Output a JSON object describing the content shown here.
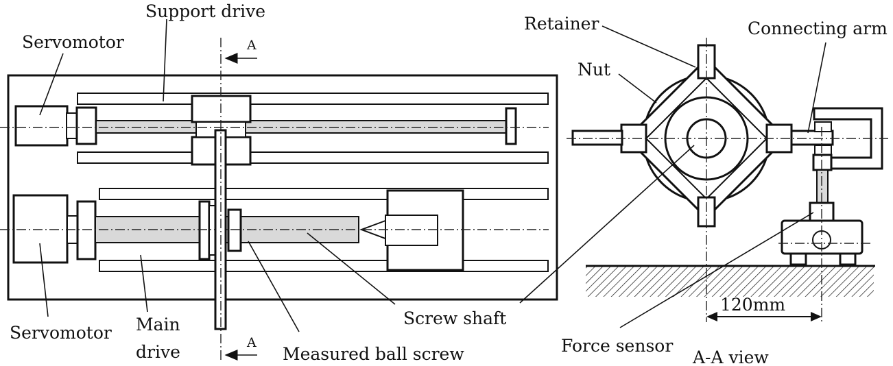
{
  "labels": {
    "support_drive": "Support drive",
    "servomotor_top": "Servomotor",
    "servomotor_bottom": "Servomotor",
    "main_drive_line1": "Main",
    "main_drive_line2": "drive",
    "measured_ball_screw": "Measured ball screw",
    "screw_shaft": "Screw shaft",
    "retainer": "Retainer",
    "nut": "Nut",
    "connecting_arm": "Connecting arm",
    "force_sensor": "Force sensor",
    "section_view": "A-A view",
    "section_mark_top": "A",
    "section_mark_bottom": "A",
    "dimension": "120mm"
  }
}
